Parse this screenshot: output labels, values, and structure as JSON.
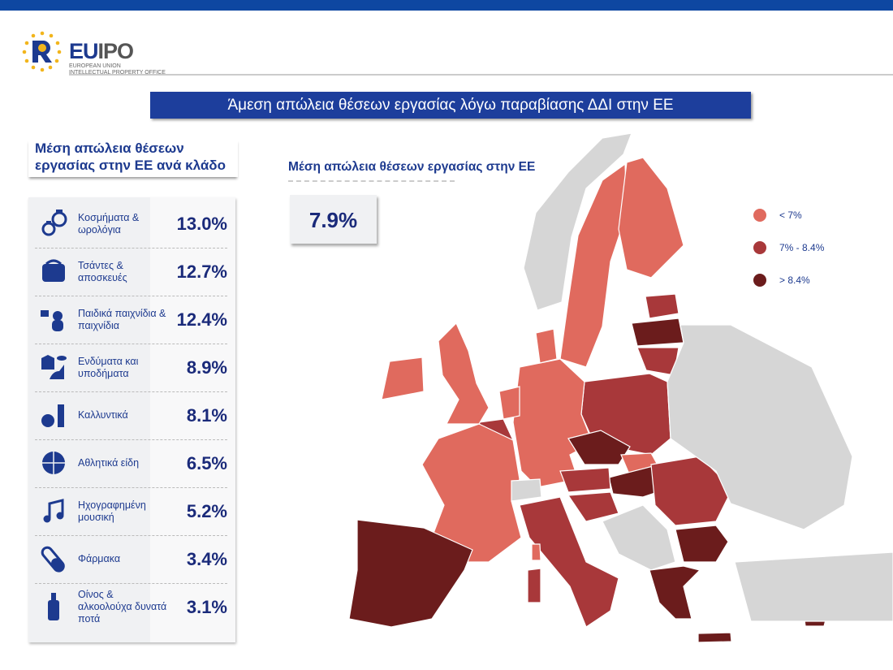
{
  "header": {
    "logo_text_eu": "EU",
    "logo_text_ipo": "IPO",
    "logo_subtitle_1": "EUROPEAN UNION",
    "logo_subtitle_2": "INTELLECTUAL PROPERTY OFFICE",
    "title": "Άμεση απώλεια θέσεων εργασίας λόγω παραβίασης ΔΔΙ στην ΕΕ"
  },
  "sectors": {
    "title": "Μέση απώλεια θέσεων εργασίας στην ΕΕ ανά κλάδο",
    "items": [
      {
        "label": "Κοσμήματα & ωρολόγια",
        "value": "13.0%",
        "icon": "jewelry-watch-icon"
      },
      {
        "label": "Τσάντες & αποσκευές",
        "value": "12.7%",
        "icon": "bag-icon"
      },
      {
        "label": "Παιδικά παιχνίδια & παιχνίδια",
        "value": "12.4%",
        "icon": "toys-icon"
      },
      {
        "label": "Ενδύματα και υποδήματα",
        "value": "8.9%",
        "icon": "clothing-shoe-icon"
      },
      {
        "label": "Καλλυντικά",
        "value": "8.1%",
        "icon": "cosmetics-icon"
      },
      {
        "label": "Αθλητικά είδη",
        "value": "6.5%",
        "icon": "ball-icon"
      },
      {
        "label": "Ηχογραφημένη μουσική",
        "value": "5.2%",
        "icon": "music-note-icon"
      },
      {
        "label": "Φάρμακα",
        "value": "3.4%",
        "icon": "pill-icon"
      },
      {
        "label": "Οίνος & αλκοολούχα δυνατά ποτά",
        "value": "3.1%",
        "icon": "bottle-icon"
      }
    ]
  },
  "map": {
    "subtitle": "Μέση απώλεια θέσεων εργασίας στην ΕΕ",
    "average": "7.9%",
    "legend": [
      {
        "label": "< 7%",
        "color": "#e06a5e"
      },
      {
        "label": "7% - 8.4%",
        "color": "#a8383a"
      },
      {
        "label": "> 8.4%",
        "color": "#6b1c1c"
      }
    ],
    "no_data_color": "#d6d6d6",
    "regions": [
      {
        "name": "norway",
        "class": "none"
      },
      {
        "name": "sweden",
        "class": 0
      },
      {
        "name": "finland",
        "class": 0
      },
      {
        "name": "estonia",
        "class": 1
      },
      {
        "name": "latvia",
        "class": 2
      },
      {
        "name": "lithuania",
        "class": 1
      },
      {
        "name": "poland",
        "class": 1
      },
      {
        "name": "germany",
        "class": 0
      },
      {
        "name": "denmark",
        "class": 0
      },
      {
        "name": "netherlands",
        "class": 0
      },
      {
        "name": "belgium",
        "class": 1
      },
      {
        "name": "france",
        "class": 0
      },
      {
        "name": "united-kingdom",
        "class": 0
      },
      {
        "name": "ireland",
        "class": 0
      },
      {
        "name": "czechia",
        "class": 2
      },
      {
        "name": "slovakia",
        "class": 0
      },
      {
        "name": "hungary",
        "class": 2
      },
      {
        "name": "austria",
        "class": 1
      },
      {
        "name": "switzerland",
        "class": "none"
      },
      {
        "name": "iberia",
        "class": 2
      },
      {
        "name": "italy",
        "class": 1
      },
      {
        "name": "sardinia",
        "class": 1
      },
      {
        "name": "corsica",
        "class": 0
      },
      {
        "name": "slovenia-croatia",
        "class": 1
      },
      {
        "name": "western-balkans",
        "class": "none"
      },
      {
        "name": "romania",
        "class": 1
      },
      {
        "name": "bulgaria",
        "class": 2
      },
      {
        "name": "greece",
        "class": 2
      },
      {
        "name": "crete",
        "class": 2
      },
      {
        "name": "cyprus",
        "class": 2
      },
      {
        "name": "eastern-europe",
        "class": "none"
      },
      {
        "name": "turkey",
        "class": "none"
      }
    ]
  }
}
